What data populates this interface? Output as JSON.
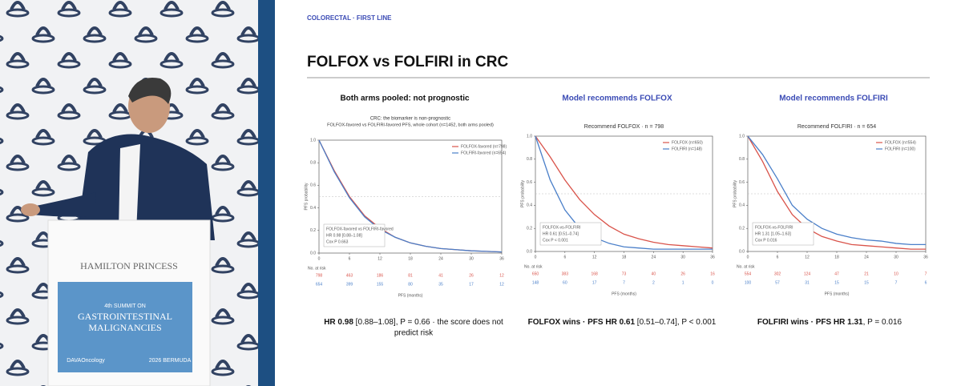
{
  "video": {
    "venue": "HAMILTON PRINCESS",
    "summit": "4th SUMMIT ON",
    "banner_line1": "GASTROINTESTINAL",
    "banner_line2": "MALIGNANCIES",
    "sponsor": "DAVAOncology",
    "location": "2026 BERMUDA"
  },
  "slide": {
    "kicker": "COLORECTAL · FIRST LINE",
    "title": "FOLFOX vs FOLFIRI in CRC",
    "panels": [
      {
        "heading": "Both arms pooled: not prognostic",
        "caption": [
          "HR 0.98",
          " [0.88–1.08], P = 0.66 · the score does not",
          "predict risk"
        ]
      },
      {
        "heading": "Model recommends FOLFOX",
        "caption": [
          "FOLFOX wins · PFS HR 0.61",
          " [0.51–0.74], P < 0.001"
        ]
      },
      {
        "heading": "Model recommends FOLFIRI",
        "caption": [
          "FOLFIRI wins · PFS HR 1.31",
          ", P = 0.016"
        ]
      }
    ]
  },
  "chart_data": [
    {
      "type": "line",
      "title": "CRC: the biomarker is non-prognostic",
      "subtitle": "FOLFOX-favored vs FOLFIRI-favored PFS, whole cohort (n=1452, both arms pooled)",
      "x_label": "PFS (months)",
      "y_label": "PFS probability",
      "x": [
        0,
        3,
        6,
        9,
        12,
        15,
        18,
        21,
        24,
        27,
        30,
        33,
        36
      ],
      "series": [
        {
          "name": "FOLFOX-favored (n=798)",
          "color": "#d9534a",
          "values": [
            1,
            0.73,
            0.5,
            0.33,
            0.22,
            0.14,
            0.09,
            0.06,
            0.04,
            0.03,
            0.02,
            0.015,
            0.01
          ]
        },
        {
          "name": "FOLFIRI-favored (n=654)",
          "color": "#4a7fc9",
          "values": [
            1,
            0.72,
            0.49,
            0.32,
            0.21,
            0.14,
            0.09,
            0.06,
            0.04,
            0.03,
            0.02,
            0.015,
            0.01
          ]
        }
      ],
      "xlim": [
        0,
        36
      ],
      "xticks": [
        0,
        6,
        12,
        18,
        24,
        30,
        36
      ],
      "ylim": [
        0,
        1
      ],
      "yticks": [
        {
          "value": 0,
          "label": "0.0"
        },
        0.2,
        0.4,
        0.6,
        0.8,
        {
          "value": 1,
          "label": "1.0"
        }
      ],
      "annotation": [
        "FOLFOX-favored vs FOLFIRI-favored",
        "HR 0.98 [0.88–1.08]",
        "Cox P 0.663"
      ],
      "risk_table": {
        "label": "No. at risk",
        "rows": [
          [
            798,
            463,
            186,
            81,
            41,
            26,
            12
          ],
          [
            654,
            399,
            155,
            80,
            35,
            17,
            12
          ]
        ]
      }
    },
    {
      "type": "line",
      "title": "Recommend FOLFOX · n = 798",
      "x_label": "PFS (months)",
      "y_label": "PFS probability",
      "x": [
        0,
        3,
        6,
        9,
        12,
        15,
        18,
        21,
        24,
        27,
        30,
        33,
        36
      ],
      "series": [
        {
          "name": "FOLFOX (n=650)",
          "color": "#d9534a",
          "values": [
            1,
            0.82,
            0.62,
            0.45,
            0.32,
            0.22,
            0.15,
            0.11,
            0.08,
            0.06,
            0.05,
            0.04,
            0.03
          ]
        },
        {
          "name": "FOLFIRI (n=148)",
          "color": "#4a7fc9",
          "values": [
            1,
            0.62,
            0.36,
            0.2,
            0.12,
            0.07,
            0.04,
            0.03,
            0.02,
            0.02,
            0.02,
            0.02,
            0.02
          ]
        }
      ],
      "xlim": [
        0,
        36
      ],
      "xticks": [
        0,
        6,
        12,
        18,
        24,
        30,
        36
      ],
      "ylim": [
        0,
        1
      ],
      "yticks": [
        {
          "value": 0,
          "label": "0.0"
        },
        0.2,
        0.4,
        0.6,
        0.8,
        {
          "value": 1,
          "label": "1.0"
        }
      ],
      "annotation": [
        "FOLFOX-vs-FOLFIRI",
        "HR 0.61 [0.51–0.74]",
        "Cox P < 0.001"
      ],
      "risk_table": {
        "label": "No. at risk",
        "rows": [
          [
            650,
            383,
            168,
            73,
            40,
            26,
            16
          ],
          [
            148,
            60,
            17,
            7,
            2,
            1,
            0
          ]
        ]
      }
    },
    {
      "type": "line",
      "title": "Recommend FOLFIRI · n = 654",
      "x_label": "PFS (months)",
      "y_label": "PFS probability",
      "x": [
        0,
        3,
        6,
        9,
        12,
        15,
        18,
        21,
        24,
        27,
        30,
        33,
        36
      ],
      "series": [
        {
          "name": "FOLFOX (n=554)",
          "color": "#d9534a",
          "values": [
            1,
            0.78,
            0.52,
            0.32,
            0.2,
            0.13,
            0.09,
            0.06,
            0.05,
            0.04,
            0.03,
            0.02,
            0.02
          ]
        },
        {
          "name": "FOLFIRI (n=100)",
          "color": "#4a7fc9",
          "values": [
            1,
            0.84,
            0.63,
            0.4,
            0.28,
            0.2,
            0.15,
            0.12,
            0.1,
            0.09,
            0.07,
            0.06,
            0.06
          ]
        }
      ],
      "xlim": [
        0,
        36
      ],
      "xticks": [
        0,
        6,
        12,
        18,
        24,
        30,
        36
      ],
      "ylim": [
        0,
        1
      ],
      "yticks": [
        {
          "value": 0,
          "label": "0.0"
        },
        0.2,
        0.4,
        0.6,
        0.8,
        {
          "value": 1,
          "label": "1.0"
        }
      ],
      "annotation": [
        "FOLFOX-vs-FOLFIRI",
        "HR 1.31 [1.05–1.63]",
        "Cox P 0.016"
      ],
      "risk_table": {
        "label": "No. at risk",
        "rows": [
          [
            554,
            302,
            124,
            47,
            21,
            10,
            7
          ],
          [
            100,
            57,
            31,
            15,
            15,
            7,
            6
          ]
        ]
      }
    }
  ]
}
